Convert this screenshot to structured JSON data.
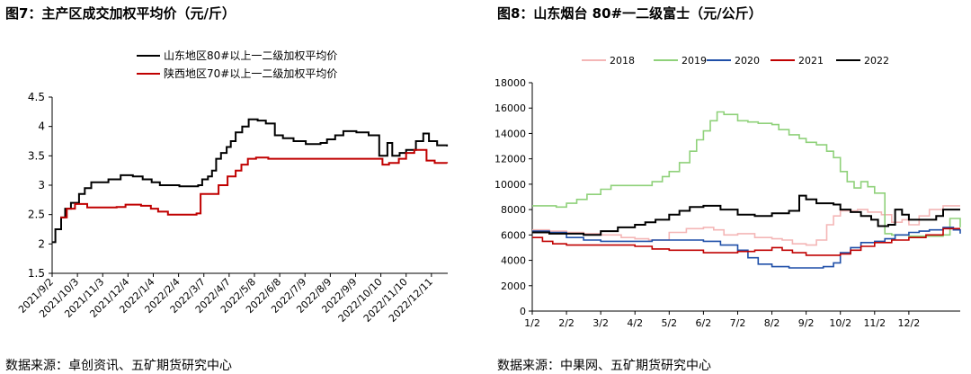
{
  "figures": {
    "left": {
      "title": "图7：主产区成交加权平均价（元/斤）",
      "source": "数据来源：卓创资讯、五矿期货研究中心"
    },
    "right": {
      "title": "图8：山东烟台 80#一二级富士（元/公斤）",
      "source": "数据来源：中果网、五矿期货研究中心"
    }
  },
  "chart_data": [
    {
      "type": "line",
      "title": "",
      "xlabel": "",
      "ylabel": "",
      "ylim": [
        1.5,
        4.5
      ],
      "yticks": [
        "1.5",
        "2",
        "2.5",
        "3",
        "3.5",
        "4",
        "4.5"
      ],
      "x_range": [
        "2021/9/2",
        "2022/12/31"
      ],
      "xticks": [
        "2021/9/2",
        "2021/10/3",
        "2021/11/3",
        "2021/12/4",
        "2022/1/4",
        "2022/2/4",
        "2022/3/7",
        "2022/4/7",
        "2022/5/8",
        "2022/6/8",
        "2022/7/9",
        "2022/8/9",
        "2022/9/9",
        "2022/10/10",
        "2022/11/10",
        "2022/12/11"
      ],
      "grid": false,
      "legend": "top",
      "colors": [
        "#000000",
        "#c00000"
      ],
      "series": [
        {
          "name": "山东地区80#以上一二级加权平均价",
          "points": [
            [
              "2021/9/2",
              2.03
            ],
            [
              "2021/9/6",
              2.25
            ],
            [
              "2021/9/13",
              2.45
            ],
            [
              "2021/9/18",
              2.6
            ],
            [
              "2021/9/25",
              2.7
            ],
            [
              "2021/10/5",
              2.85
            ],
            [
              "2021/10/12",
              2.95
            ],
            [
              "2021/10/20",
              3.05
            ],
            [
              "2021/11/10",
              3.1
            ],
            [
              "2021/11/25",
              3.17
            ],
            [
              "2021/12/10",
              3.15
            ],
            [
              "2021/12/22",
              3.1
            ],
            [
              "2022/1/2",
              3.05
            ],
            [
              "2022/1/12",
              3.0
            ],
            [
              "2022/2/5",
              2.98
            ],
            [
              "2022/2/28",
              3.0
            ],
            [
              "2022/3/5",
              3.1
            ],
            [
              "2022/3/12",
              3.15
            ],
            [
              "2022/3/17",
              3.25
            ],
            [
              "2022/3/22",
              3.45
            ],
            [
              "2022/3/28",
              3.55
            ],
            [
              "2022/4/4",
              3.65
            ],
            [
              "2022/4/9",
              3.75
            ],
            [
              "2022/4/15",
              3.9
            ],
            [
              "2022/4/23",
              4.0
            ],
            [
              "2022/5/1",
              4.12
            ],
            [
              "2022/5/12",
              4.1
            ],
            [
              "2022/5/22",
              4.05
            ],
            [
              "2022/6/2",
              3.85
            ],
            [
              "2022/6/12",
              3.8
            ],
            [
              "2022/6/25",
              3.75
            ],
            [
              "2022/7/10",
              3.7
            ],
            [
              "2022/7/28",
              3.72
            ],
            [
              "2022/8/5",
              3.78
            ],
            [
              "2022/8/15",
              3.85
            ],
            [
              "2022/8/25",
              3.92
            ],
            [
              "2022/9/10",
              3.9
            ],
            [
              "2022/9/25",
              3.85
            ],
            [
              "2022/10/8",
              3.5
            ],
            [
              "2022/10/18",
              3.72
            ],
            [
              "2022/10/24",
              3.5
            ],
            [
              "2022/11/2",
              3.55
            ],
            [
              "2022/11/10",
              3.6
            ],
            [
              "2022/11/22",
              3.75
            ],
            [
              "2022/12/1",
              3.88
            ],
            [
              "2022/12/8",
              3.75
            ],
            [
              "2022/12/18",
              3.68
            ],
            [
              "2022/12/30",
              3.66
            ]
          ]
        },
        {
          "name": "陕西地区70#以上一二级加权平均价",
          "points": [
            [
              "2021/9/12",
              2.45
            ],
            [
              "2021/9/20",
              2.6
            ],
            [
              "2021/9/30",
              2.68
            ],
            [
              "2021/10/15",
              2.62
            ],
            [
              "2021/11/20",
              2.63
            ],
            [
              "2021/12/1",
              2.67
            ],
            [
              "2021/12/20",
              2.65
            ],
            [
              "2022/1/1",
              2.6
            ],
            [
              "2022/1/10",
              2.55
            ],
            [
              "2022/1/22",
              2.5
            ],
            [
              "2022/2/26",
              2.52
            ],
            [
              "2022/3/3",
              2.85
            ],
            [
              "2022/3/25",
              3.0
            ],
            [
              "2022/4/5",
              3.15
            ],
            [
              "2022/4/15",
              3.25
            ],
            [
              "2022/4/22",
              3.35
            ],
            [
              "2022/4/30",
              3.45
            ],
            [
              "2022/5/10",
              3.47
            ],
            [
              "2022/5/25",
              3.45
            ],
            [
              "2022/6/14",
              3.45
            ],
            [
              "2022/10/12",
              3.35
            ],
            [
              "2022/10/20",
              3.38
            ],
            [
              "2022/11/1",
              3.45
            ],
            [
              "2022/11/10",
              3.55
            ],
            [
              "2022/11/20",
              3.6
            ],
            [
              "2022/12/5",
              3.42
            ],
            [
              "2022/12/15",
              3.38
            ],
            [
              "2022/12/30",
              3.37
            ]
          ]
        }
      ]
    },
    {
      "type": "line",
      "title": "",
      "xlabel": "",
      "ylabel": "",
      "ylim": [
        0,
        18000
      ],
      "yticks": [
        "0",
        "2000",
        "4000",
        "6000",
        "8000",
        "10000",
        "12000",
        "14000",
        "16000",
        "18000"
      ],
      "categories": [
        "1/2",
        "2/2",
        "3/2",
        "4/2",
        "5/2",
        "6/2",
        "7/2",
        "8/2",
        "9/2",
        "10/2",
        "11/2",
        "12/2"
      ],
      "grid": false,
      "legend": "top",
      "colors": [
        "#f4b6b6",
        "#8fd17a",
        "#1f4fa8",
        "#c00000",
        "#000000"
      ],
      "series": [
        {
          "name": "2018",
          "points": [
            [
              0,
              6400
            ],
            [
              0.5,
              6300
            ],
            [
              1,
              6200
            ],
            [
              1.5,
              6100
            ],
            [
              2,
              6000
            ],
            [
              2.6,
              5800
            ],
            [
              3,
              5700
            ],
            [
              3.4,
              5600
            ],
            [
              4,
              6200
            ],
            [
              4.5,
              6500
            ],
            [
              5,
              6600
            ],
            [
              5.3,
              6400
            ],
            [
              5.6,
              6000
            ],
            [
              6,
              6100
            ],
            [
              6.5,
              5800
            ],
            [
              7,
              5700
            ],
            [
              7.3,
              5600
            ],
            [
              7.6,
              5300
            ],
            [
              8,
              5200
            ],
            [
              8.3,
              5600
            ],
            [
              8.6,
              6800
            ],
            [
              8.8,
              7500
            ],
            [
              9,
              7900
            ],
            [
              9.5,
              8000
            ],
            [
              9.8,
              7800
            ],
            [
              10.2,
              7600
            ],
            [
              10.5,
              7000
            ],
            [
              10.8,
              7200
            ],
            [
              11,
              6800
            ],
            [
              11.3,
              7500
            ],
            [
              11.6,
              8000
            ],
            [
              12,
              8300
            ],
            [
              12.5,
              8300
            ]
          ]
        },
        {
          "name": "2019",
          "points": [
            [
              0,
              8300
            ],
            [
              0.7,
              8200
            ],
            [
              1,
              8500
            ],
            [
              1.3,
              8800
            ],
            [
              1.6,
              9200
            ],
            [
              2,
              9600
            ],
            [
              2.3,
              9900
            ],
            [
              3,
              9900
            ],
            [
              3.5,
              10200
            ],
            [
              3.8,
              10600
            ],
            [
              4,
              11000
            ],
            [
              4.3,
              11700
            ],
            [
              4.6,
              12600
            ],
            [
              4.8,
              13500
            ],
            [
              5,
              14200
            ],
            [
              5.2,
              15000
            ],
            [
              5.4,
              15700
            ],
            [
              5.6,
              15500
            ],
            [
              6,
              15000
            ],
            [
              6.3,
              14900
            ],
            [
              6.6,
              14800
            ],
            [
              7,
              14700
            ],
            [
              7.2,
              14300
            ],
            [
              7.5,
              13900
            ],
            [
              7.8,
              13600
            ],
            [
              8,
              13300
            ],
            [
              8.3,
              13100
            ],
            [
              8.6,
              12600
            ],
            [
              8.8,
              12100
            ],
            [
              9,
              11000
            ],
            [
              9.2,
              10200
            ],
            [
              9.4,
              9700
            ],
            [
              9.6,
              10200
            ],
            [
              9.8,
              9800
            ],
            [
              10,
              9300
            ],
            [
              10.2,
              9300
            ],
            [
              10.3,
              6100
            ],
            [
              10.5,
              6000
            ],
            [
              11,
              5900
            ],
            [
              11.5,
              5900
            ],
            [
              12,
              6000
            ],
            [
              12.2,
              7300
            ],
            [
              12.5,
              6600
            ]
          ]
        },
        {
          "name": "2020",
          "points": [
            [
              0,
              6300
            ],
            [
              0.5,
              6200
            ],
            [
              1,
              5800
            ],
            [
              1.5,
              5600
            ],
            [
              2,
              5500
            ],
            [
              3,
              5500
            ],
            [
              3.5,
              5600
            ],
            [
              4,
              5600
            ],
            [
              4.5,
              5600
            ],
            [
              5,
              5500
            ],
            [
              5.5,
              5200
            ],
            [
              6,
              4800
            ],
            [
              6.3,
              4200
            ],
            [
              6.6,
              3700
            ],
            [
              7,
              3500
            ],
            [
              7.5,
              3400
            ],
            [
              8,
              3400
            ],
            [
              8.5,
              3500
            ],
            [
              8.8,
              3800
            ],
            [
              9,
              4600
            ],
            [
              9.3,
              5000
            ],
            [
              9.6,
              5400
            ],
            [
              10,
              5500
            ],
            [
              10.3,
              5700
            ],
            [
              10.6,
              6000
            ],
            [
              11,
              6200
            ],
            [
              11.3,
              6300
            ],
            [
              11.6,
              6400
            ],
            [
              12,
              6600
            ],
            [
              12.3,
              6400
            ],
            [
              12.5,
              6100
            ]
          ]
        },
        {
          "name": "2021",
          "points": [
            [
              0,
              5800
            ],
            [
              0.3,
              5500
            ],
            [
              0.6,
              5300
            ],
            [
              1,
              5200
            ],
            [
              2,
              5200
            ],
            [
              3,
              5100
            ],
            [
              3.5,
              4900
            ],
            [
              4,
              4800
            ],
            [
              4.5,
              4800
            ],
            [
              5,
              4600
            ],
            [
              5.5,
              4600
            ],
            [
              6,
              4700
            ],
            [
              6.5,
              4800
            ],
            [
              7,
              5000
            ],
            [
              7.3,
              4800
            ],
            [
              7.6,
              4600
            ],
            [
              8,
              4400
            ],
            [
              8.5,
              4400
            ],
            [
              9,
              4500
            ],
            [
              9.3,
              4800
            ],
            [
              9.6,
              5100
            ],
            [
              10,
              5400
            ],
            [
              10.5,
              5600
            ],
            [
              11,
              5800
            ],
            [
              11.5,
              6000
            ],
            [
              12,
              6500
            ],
            [
              12.5,
              6500
            ]
          ]
        },
        {
          "name": "2022",
          "points": [
            [
              0,
              6200
            ],
            [
              0.5,
              6100
            ],
            [
              1,
              6100
            ],
            [
              1.5,
              6000
            ],
            [
              2,
              6300
            ],
            [
              2.5,
              6600
            ],
            [
              3,
              6800
            ],
            [
              3.3,
              7000
            ],
            [
              3.6,
              7200
            ],
            [
              4,
              7600
            ],
            [
              4.3,
              7900
            ],
            [
              4.6,
              8200
            ],
            [
              5,
              8300
            ],
            [
              5.5,
              8000
            ],
            [
              6,
              7600
            ],
            [
              6.5,
              7500
            ],
            [
              7,
              7700
            ],
            [
              7.5,
              7900
            ],
            [
              7.8,
              9100
            ],
            [
              8,
              8800
            ],
            [
              8.3,
              8500
            ],
            [
              8.8,
              8400
            ],
            [
              9,
              8000
            ],
            [
              9.3,
              7800
            ],
            [
              9.6,
              7500
            ],
            [
              9.9,
              7200
            ],
            [
              10.1,
              6700
            ],
            [
              10.4,
              6800
            ],
            [
              10.6,
              8000
            ],
            [
              10.8,
              7600
            ],
            [
              11,
              7200
            ],
            [
              11.5,
              7200
            ],
            [
              11.8,
              7500
            ],
            [
              12,
              8000
            ],
            [
              12.5,
              8000
            ]
          ]
        }
      ]
    }
  ]
}
